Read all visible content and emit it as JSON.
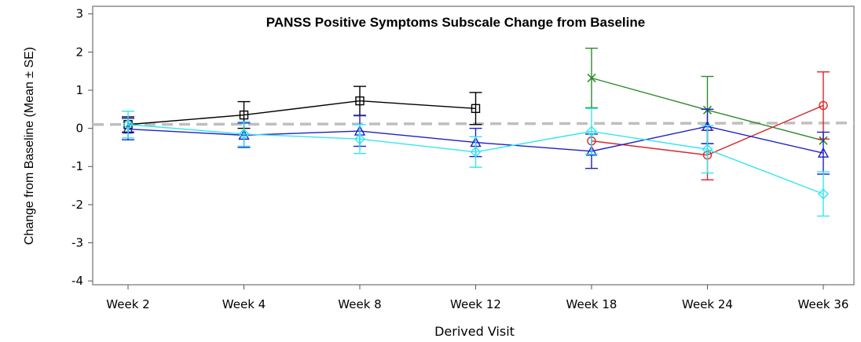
{
  "chart_data": {
    "type": "line",
    "title": "PANSS Positive Symptoms Subscale Change from Baseline",
    "xlabel": "Derived Visit",
    "ylabel": "Change from Baseline (Mean ± SE)",
    "categories": [
      "Week 2",
      "Week 4",
      "Week 8",
      "Week 12",
      "Week 18",
      "Week 24",
      "Week 36"
    ],
    "ylim": [
      -4.1,
      3.2
    ],
    "yticks": [
      3,
      2,
      1,
      0,
      -1,
      -2,
      -3,
      -4
    ],
    "ytick_labels": [
      "3",
      "2",
      "1",
      "0",
      "-1",
      "-2",
      "-3",
      "-4"
    ],
    "reference_line": {
      "y": 0.1,
      "color": "#bfbfbf",
      "style": "dashed"
    },
    "grid": false,
    "series": [
      {
        "color": "#000000",
        "marker": "square",
        "values": [
          0.1,
          0.35,
          0.72,
          0.52,
          null,
          null,
          null
        ],
        "err": [
          0.2,
          0.35,
          0.38,
          0.42,
          null,
          null,
          null
        ]
      },
      {
        "color": "#2e8b2e",
        "marker": "x",
        "values": [
          null,
          null,
          null,
          null,
          1.32,
          0.48,
          -0.32
        ],
        "err": [
          null,
          null,
          null,
          null,
          0.78,
          0.88,
          0.0
        ]
      },
      {
        "color": "#d62728",
        "marker": "circle",
        "values": [
          null,
          null,
          null,
          null,
          -0.33,
          -0.7,
          0.6
        ],
        "err": [
          null,
          null,
          null,
          null,
          0.0,
          0.65,
          0.88
        ]
      },
      {
        "color": "#1f1fc8",
        "marker": "triangle",
        "values": [
          -0.02,
          -0.18,
          -0.07,
          -0.37,
          -0.6,
          0.05,
          -0.65
        ],
        "err": [
          0.28,
          0.32,
          0.4,
          0.37,
          0.45,
          0.45,
          0.55
        ]
      },
      {
        "color": "#33e6f0",
        "marker": "diamond",
        "values": [
          0.1,
          -0.15,
          -0.28,
          -0.62,
          -0.08,
          -0.55,
          -1.72
        ],
        "err": [
          0.35,
          0.32,
          0.38,
          0.4,
          0.6,
          0.62,
          0.58
        ]
      }
    ]
  }
}
